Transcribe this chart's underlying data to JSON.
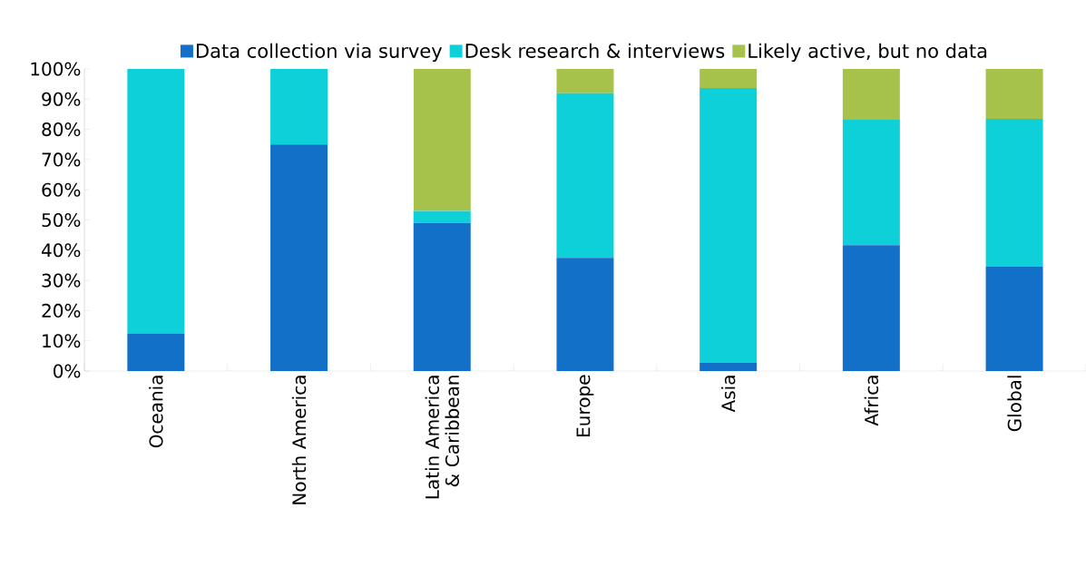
{
  "chart_data": {
    "type": "bar",
    "stacked": true,
    "categories": [
      "Oceania",
      "North America",
      "Latin America & Caribbean",
      "Europe",
      "Asia",
      "Africa",
      "Global"
    ],
    "series": [
      {
        "name": "Data collection via survey",
        "color": "#1270c8",
        "values": [
          12.5,
          75,
          49,
          37.5,
          2.7,
          41.7,
          34.5
        ]
      },
      {
        "name": "Desk research & interviews",
        "color": "#0dd0d8",
        "values": [
          87.5,
          25,
          4,
          54.5,
          91,
          41.7,
          49
        ]
      },
      {
        "name": "Likely active, but no data",
        "color": "#a6c24a",
        "values": [
          0,
          0,
          47,
          8,
          6.3,
          16.6,
          16.5
        ]
      }
    ],
    "ylim": [
      0,
      100
    ],
    "yticks": [
      {
        "value": 0,
        "label": "0%"
      },
      {
        "value": 10,
        "label": "10%"
      },
      {
        "value": 20,
        "label": "20%"
      },
      {
        "value": 30,
        "label": "30%"
      },
      {
        "value": 40,
        "label": "40%"
      },
      {
        "value": 50,
        "label": "50%"
      },
      {
        "value": 60,
        "label": "60%"
      },
      {
        "value": 70,
        "label": "70%"
      },
      {
        "value": 80,
        "label": "80%"
      },
      {
        "value": 90,
        "label": "90%"
      },
      {
        "value": 100,
        "label": "100%"
      }
    ],
    "legend": "top",
    "grid": false
  }
}
